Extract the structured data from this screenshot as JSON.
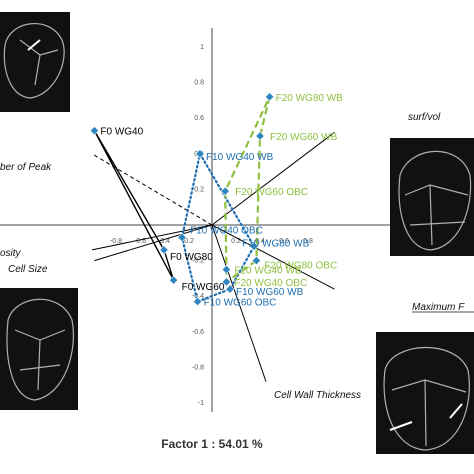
{
  "chart_data": {
    "type": "scatter",
    "xlabel": "Factor 1 : 54.01 %",
    "ylabel": "",
    "xlim": [
      -1,
      1
    ],
    "ylim": [
      -1,
      1
    ],
    "x_ticks": [
      -0.8,
      -0.6,
      -0.4,
      -0.2,
      0.2,
      0.4,
      0.6,
      0.8
    ],
    "y_ticks": [
      1,
      0.8,
      0.6,
      0.4,
      0.2,
      -0.2,
      -0.4,
      -0.6,
      -0.8,
      -1
    ],
    "x_tick_labels": [
      "-0.8",
      "-0.6",
      "-0.4",
      "-0.2",
      "0.2",
      "0.4",
      "0.6",
      "0.8"
    ],
    "y_tick_labels": [
      "1",
      "0.8",
      "0.6",
      "0.4",
      "0.2",
      "-0.2",
      "-0.4",
      "-0.6",
      "-0.8",
      "-1"
    ],
    "colors": {
      "black": "#000000",
      "blue": "#1f6fb2",
      "green": "#8fbf3f",
      "marker": "#2e86c1"
    },
    "points": [
      {
        "label": "F0 WG40",
        "x": -0.98,
        "y": 0.53,
        "group": "F0"
      },
      {
        "label": "F0 WG80",
        "x": -0.4,
        "y": -0.14,
        "group": "F0"
      },
      {
        "label": "F0 WG60",
        "x": -0.32,
        "y": -0.31,
        "group": "F0"
      },
      {
        "label": "F10 WG40 WB",
        "x": -0.1,
        "y": 0.4,
        "group": "F10"
      },
      {
        "label": "F10 WG40 OBC",
        "x": -0.25,
        "y": -0.07,
        "group": "F10"
      },
      {
        "label": "F10 WG60 OBC",
        "x": -0.12,
        "y": -0.43,
        "group": "F10"
      },
      {
        "label": "F10 WG60 WB",
        "x": 0.15,
        "y": -0.36,
        "group": "F10"
      },
      {
        "label": "F10 WG80 WB",
        "x": 0.35,
        "y": -0.12,
        "group": "F10"
      },
      {
        "label": "F20 WG80 WB",
        "x": 0.48,
        "y": 0.72,
        "group": "F20"
      },
      {
        "label": "F20 WG60 WB",
        "x": 0.4,
        "y": 0.5,
        "group": "F20"
      },
      {
        "label": "F20 WG60 OBC",
        "x": 0.11,
        "y": 0.19,
        "group": "F20"
      },
      {
        "label": "F20 WG80 OBC",
        "x": 0.37,
        "y": -0.2,
        "group": "F20"
      },
      {
        "label": "F20 WG40 WB",
        "x": 0.12,
        "y": -0.25,
        "group": "F20"
      },
      {
        "label": "F20 WG40 OBC",
        "x": 0.12,
        "y": -0.32,
        "group": "F20"
      }
    ],
    "polygons": [
      {
        "group": "F0",
        "style": "solid",
        "color": "black",
        "vertices": [
          "F0 WG40",
          "F0 WG80",
          "F0 WG60"
        ]
      },
      {
        "group": "F10",
        "style": "dotted",
        "color": "blue",
        "vertices": [
          "F10 WG40 WB",
          "F10 WG80 WB",
          "F10 WG60 WB",
          "F10 WG60 OBC",
          "F10 WG40 OBC"
        ]
      },
      {
        "group": "F20",
        "style": "dashed",
        "color": "green",
        "vertices": [
          "F20 WG80 WB",
          "F20 WG60 WB",
          "F20 WG80 OBC",
          "F20 WG40 OBC",
          "F20 WG40 WB",
          "F20 WG60 OBC"
        ]
      }
    ],
    "vectors": [
      {
        "label": "surf/vol",
        "x": 1.02,
        "y": 0.52,
        "style": "solid"
      },
      {
        "label": "Maximum F",
        "x": 1.02,
        "y": -0.36,
        "style": "solid"
      },
      {
        "label": "Cell Wall Thickness",
        "x": 0.45,
        "y": -0.88,
        "style": "solid"
      },
      {
        "label": "Cell Size",
        "x": -0.98,
        "y": -0.2,
        "style": "solid"
      },
      {
        "label": "osity",
        "x": -1.0,
        "y": -0.14,
        "style": "solid"
      },
      {
        "label": "ber of Peak",
        "x": -1.0,
        "y": 0.4,
        "style": "dashed"
      }
    ]
  }
}
